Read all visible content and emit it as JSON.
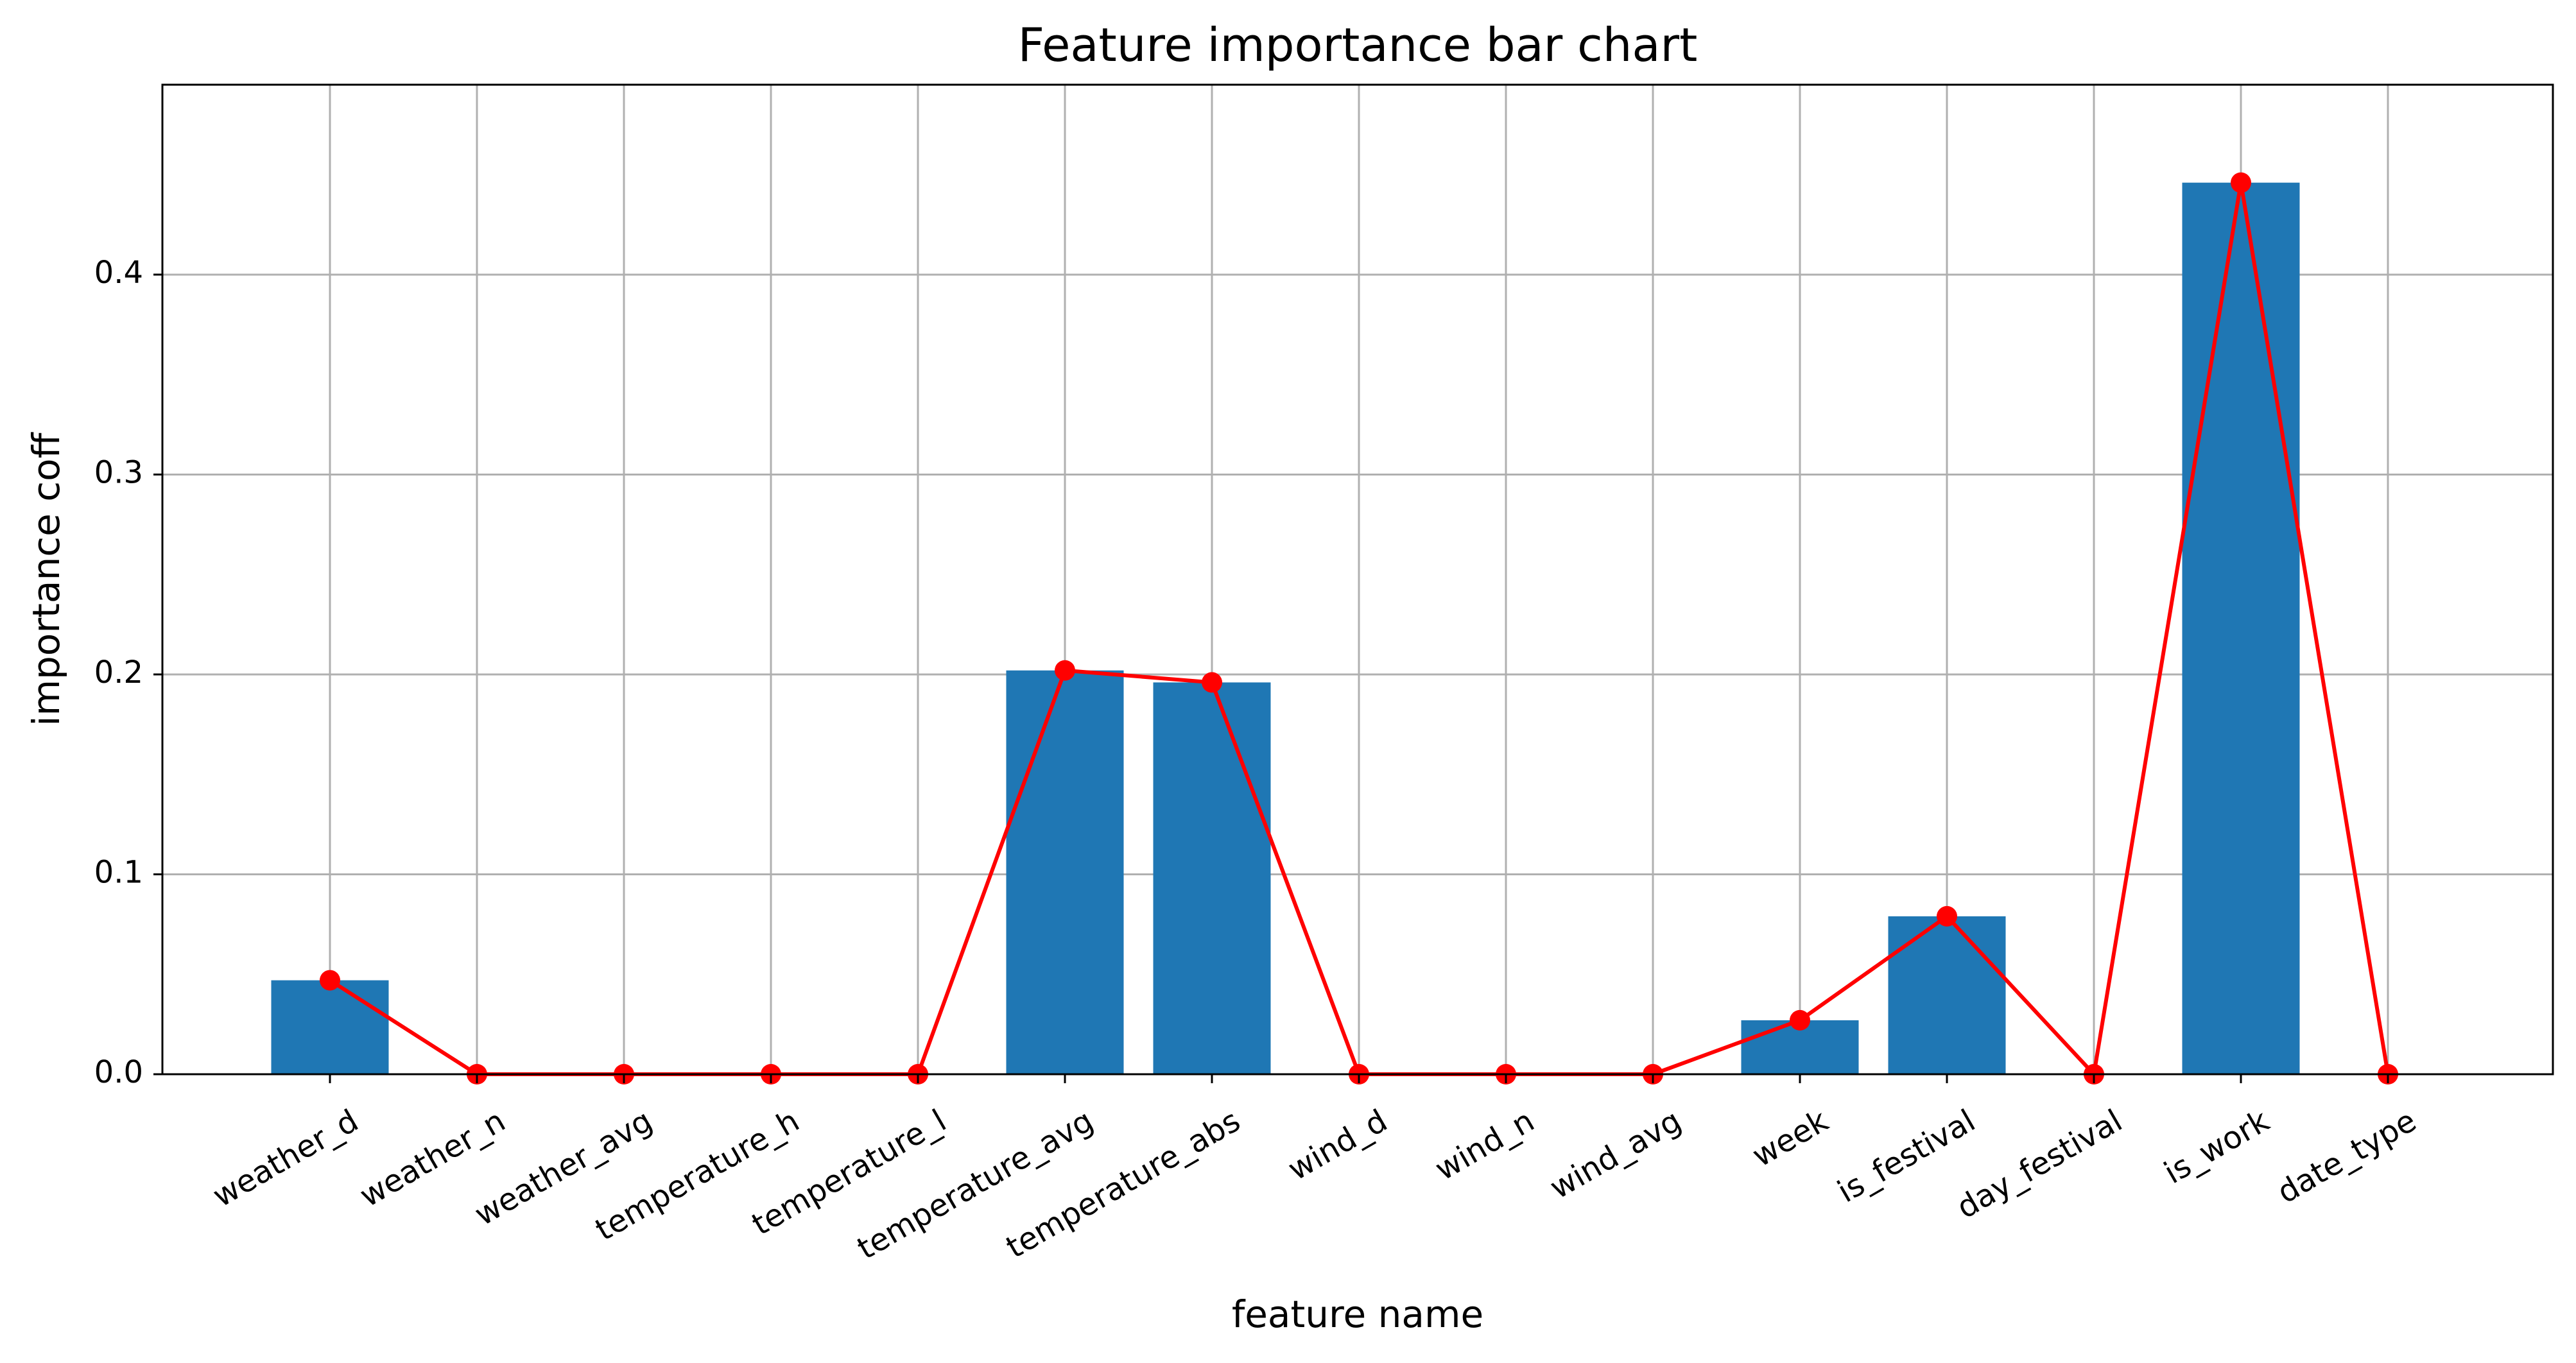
{
  "chart_data": {
    "type": "bar",
    "title": "Feature importance bar chart",
    "xlabel": "feature name",
    "ylabel": "importance coff",
    "categories": [
      "weather_d",
      "weather_n",
      "weather_avg",
      "temperature_h",
      "temperature_l",
      "temperature_avg",
      "temperature_abs",
      "wind_d",
      "wind_n",
      "wind_avg",
      "week",
      "is_festival",
      "day_festival",
      "is_work",
      "date_type"
    ],
    "values": [
      0.047,
      0.0,
      0.0,
      0.0,
      0.0,
      0.202,
      0.196,
      0.0,
      0.0,
      0.0,
      0.027,
      0.079,
      0.0,
      0.446,
      0.0
    ],
    "ylim": [
      0,
      0.495
    ],
    "yticks": [
      "0.0",
      "0.1",
      "0.2",
      "0.3",
      "0.4"
    ],
    "grid": true,
    "bar_color": "#1f77b4",
    "line_color": "#ff0000",
    "line_series": {
      "marker": "circle",
      "values": [
        0.047,
        0.0,
        0.0,
        0.0,
        0.0,
        0.202,
        0.196,
        0.0,
        0.0,
        0.0,
        0.027,
        0.079,
        0.0,
        0.446,
        0.0
      ]
    }
  }
}
